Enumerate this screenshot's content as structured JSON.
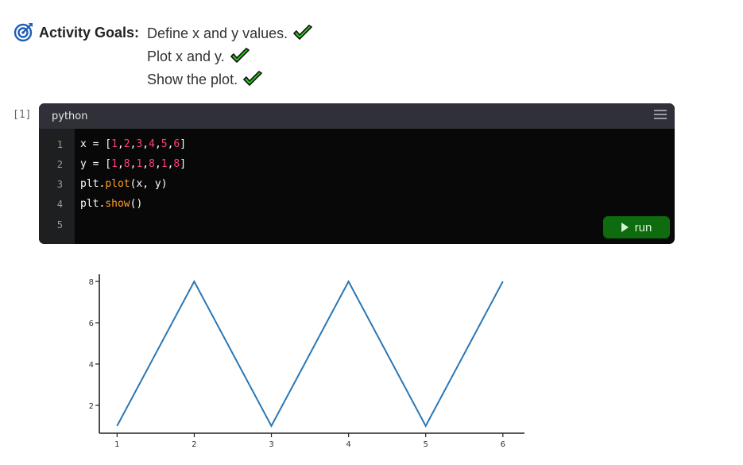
{
  "goals": {
    "title": "Activity Goals:",
    "icon": "target-icon",
    "items": [
      {
        "text": "Define x and y values.",
        "done": true
      },
      {
        "text": "Plot x and y.",
        "done": true
      },
      {
        "text": "Show the plot.",
        "done": true
      }
    ]
  },
  "cell": {
    "counter": "[1]",
    "language": "python",
    "run_label": "run",
    "lines": [
      {
        "num": "1",
        "tokens": [
          {
            "t": "x = [",
            "c": "plain"
          },
          {
            "t": "1",
            "c": "num"
          },
          {
            "t": ",",
            "c": "plain"
          },
          {
            "t": "2",
            "c": "num"
          },
          {
            "t": ",",
            "c": "plain"
          },
          {
            "t": "3",
            "c": "num"
          },
          {
            "t": ",",
            "c": "plain"
          },
          {
            "t": "4",
            "c": "num"
          },
          {
            "t": ",",
            "c": "plain"
          },
          {
            "t": "5",
            "c": "num"
          },
          {
            "t": ",",
            "c": "plain"
          },
          {
            "t": "6",
            "c": "num"
          },
          {
            "t": "]",
            "c": "plain"
          }
        ]
      },
      {
        "num": "2",
        "tokens": [
          {
            "t": "y = [",
            "c": "plain"
          },
          {
            "t": "1",
            "c": "num"
          },
          {
            "t": ",",
            "c": "plain"
          },
          {
            "t": "8",
            "c": "num"
          },
          {
            "t": ",",
            "c": "plain"
          },
          {
            "t": "1",
            "c": "num"
          },
          {
            "t": ",",
            "c": "plain"
          },
          {
            "t": "8",
            "c": "num"
          },
          {
            "t": ",",
            "c": "plain"
          },
          {
            "t": "1",
            "c": "num"
          },
          {
            "t": ",",
            "c": "plain"
          },
          {
            "t": "8",
            "c": "num"
          },
          {
            "t": "]",
            "c": "plain"
          }
        ]
      },
      {
        "num": "3",
        "tokens": [
          {
            "t": "plt.",
            "c": "plain"
          },
          {
            "t": "plot",
            "c": "fn"
          },
          {
            "t": "(x, y)",
            "c": "plain"
          }
        ]
      },
      {
        "num": "4",
        "tokens": [
          {
            "t": "plt.",
            "c": "plain"
          },
          {
            "t": "show",
            "c": "fn"
          },
          {
            "t": "()",
            "c": "plain"
          }
        ]
      },
      {
        "num": "5",
        "tokens": []
      }
    ]
  },
  "colors": {
    "line": "#2a77b5",
    "check_fill": "#2ecc1a",
    "icon_blue": "#1f5fb8",
    "run_bg": "#0e6b0e"
  },
  "chart_data": {
    "type": "line",
    "x": [
      1,
      2,
      3,
      4,
      5,
      6
    ],
    "series": [
      {
        "values": [
          1,
          8,
          1,
          8,
          1,
          8
        ]
      }
    ],
    "xticks": [
      "1",
      "2",
      "3",
      "4",
      "5",
      "6"
    ],
    "yticks": [
      "2",
      "4",
      "6",
      "8"
    ],
    "xlim": [
      0.77,
      6.28
    ],
    "ylim": [
      0.65,
      8.35
    ],
    "grid": false,
    "title": "",
    "xlabel": "",
    "ylabel": ""
  }
}
